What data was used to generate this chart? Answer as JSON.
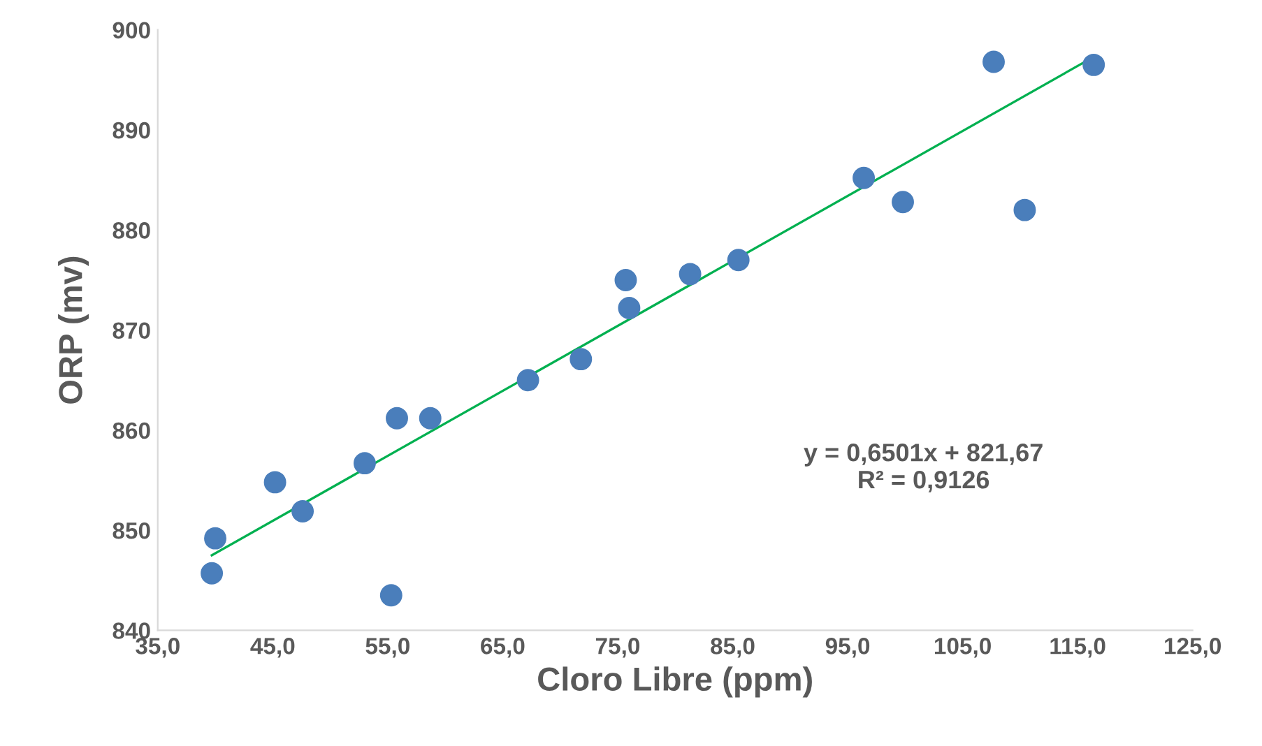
{
  "chart_data": {
    "type": "scatter",
    "xlabel": "Cloro Libre (ppm)",
    "ylabel": "ORP (mv)",
    "xlim": [
      35,
      125
    ],
    "ylim": [
      840,
      900
    ],
    "xticks": [
      {
        "value": 35,
        "label": "35,0"
      },
      {
        "value": 45,
        "label": "45,0"
      },
      {
        "value": 55,
        "label": "55,0"
      },
      {
        "value": 65,
        "label": "65,0"
      },
      {
        "value": 75,
        "label": "75,0"
      },
      {
        "value": 85,
        "label": "85,0"
      },
      {
        "value": 95,
        "label": "95,0"
      },
      {
        "value": 105,
        "label": "105,0"
      },
      {
        "value": 115,
        "label": "115,0"
      },
      {
        "value": 125,
        "label": "125,0"
      }
    ],
    "yticks": [
      840,
      850,
      860,
      870,
      880,
      890,
      900
    ],
    "grid": false,
    "legend": false,
    "series": [
      {
        "marker": "circle",
        "color": "#4a7ebb",
        "x": [
          39.7,
          40.0,
          45.2,
          47.6,
          53.0,
          55.3,
          55.8,
          58.7,
          67.2,
          71.8,
          75.7,
          76.0,
          81.3,
          85.5,
          96.4,
          99.8,
          107.7,
          110.4,
          116.4
        ],
        "values": [
          845.7,
          849.2,
          854.8,
          851.9,
          856.7,
          843.5,
          861.2,
          861.2,
          865.0,
          867.1,
          875.0,
          872.2,
          875.6,
          877.0,
          885.2,
          882.8,
          896.8,
          882.0,
          896.5
        ]
      },
      {
        "type": "line",
        "color": "#00b050",
        "line_style": "solid",
        "x": [
          39.7,
          116.4
        ],
        "values": [
          847.5,
          897.3
        ]
      }
    ],
    "annotations": [
      "y = 0,6501x + 821,67\nR² = 0,9126"
    ]
  }
}
